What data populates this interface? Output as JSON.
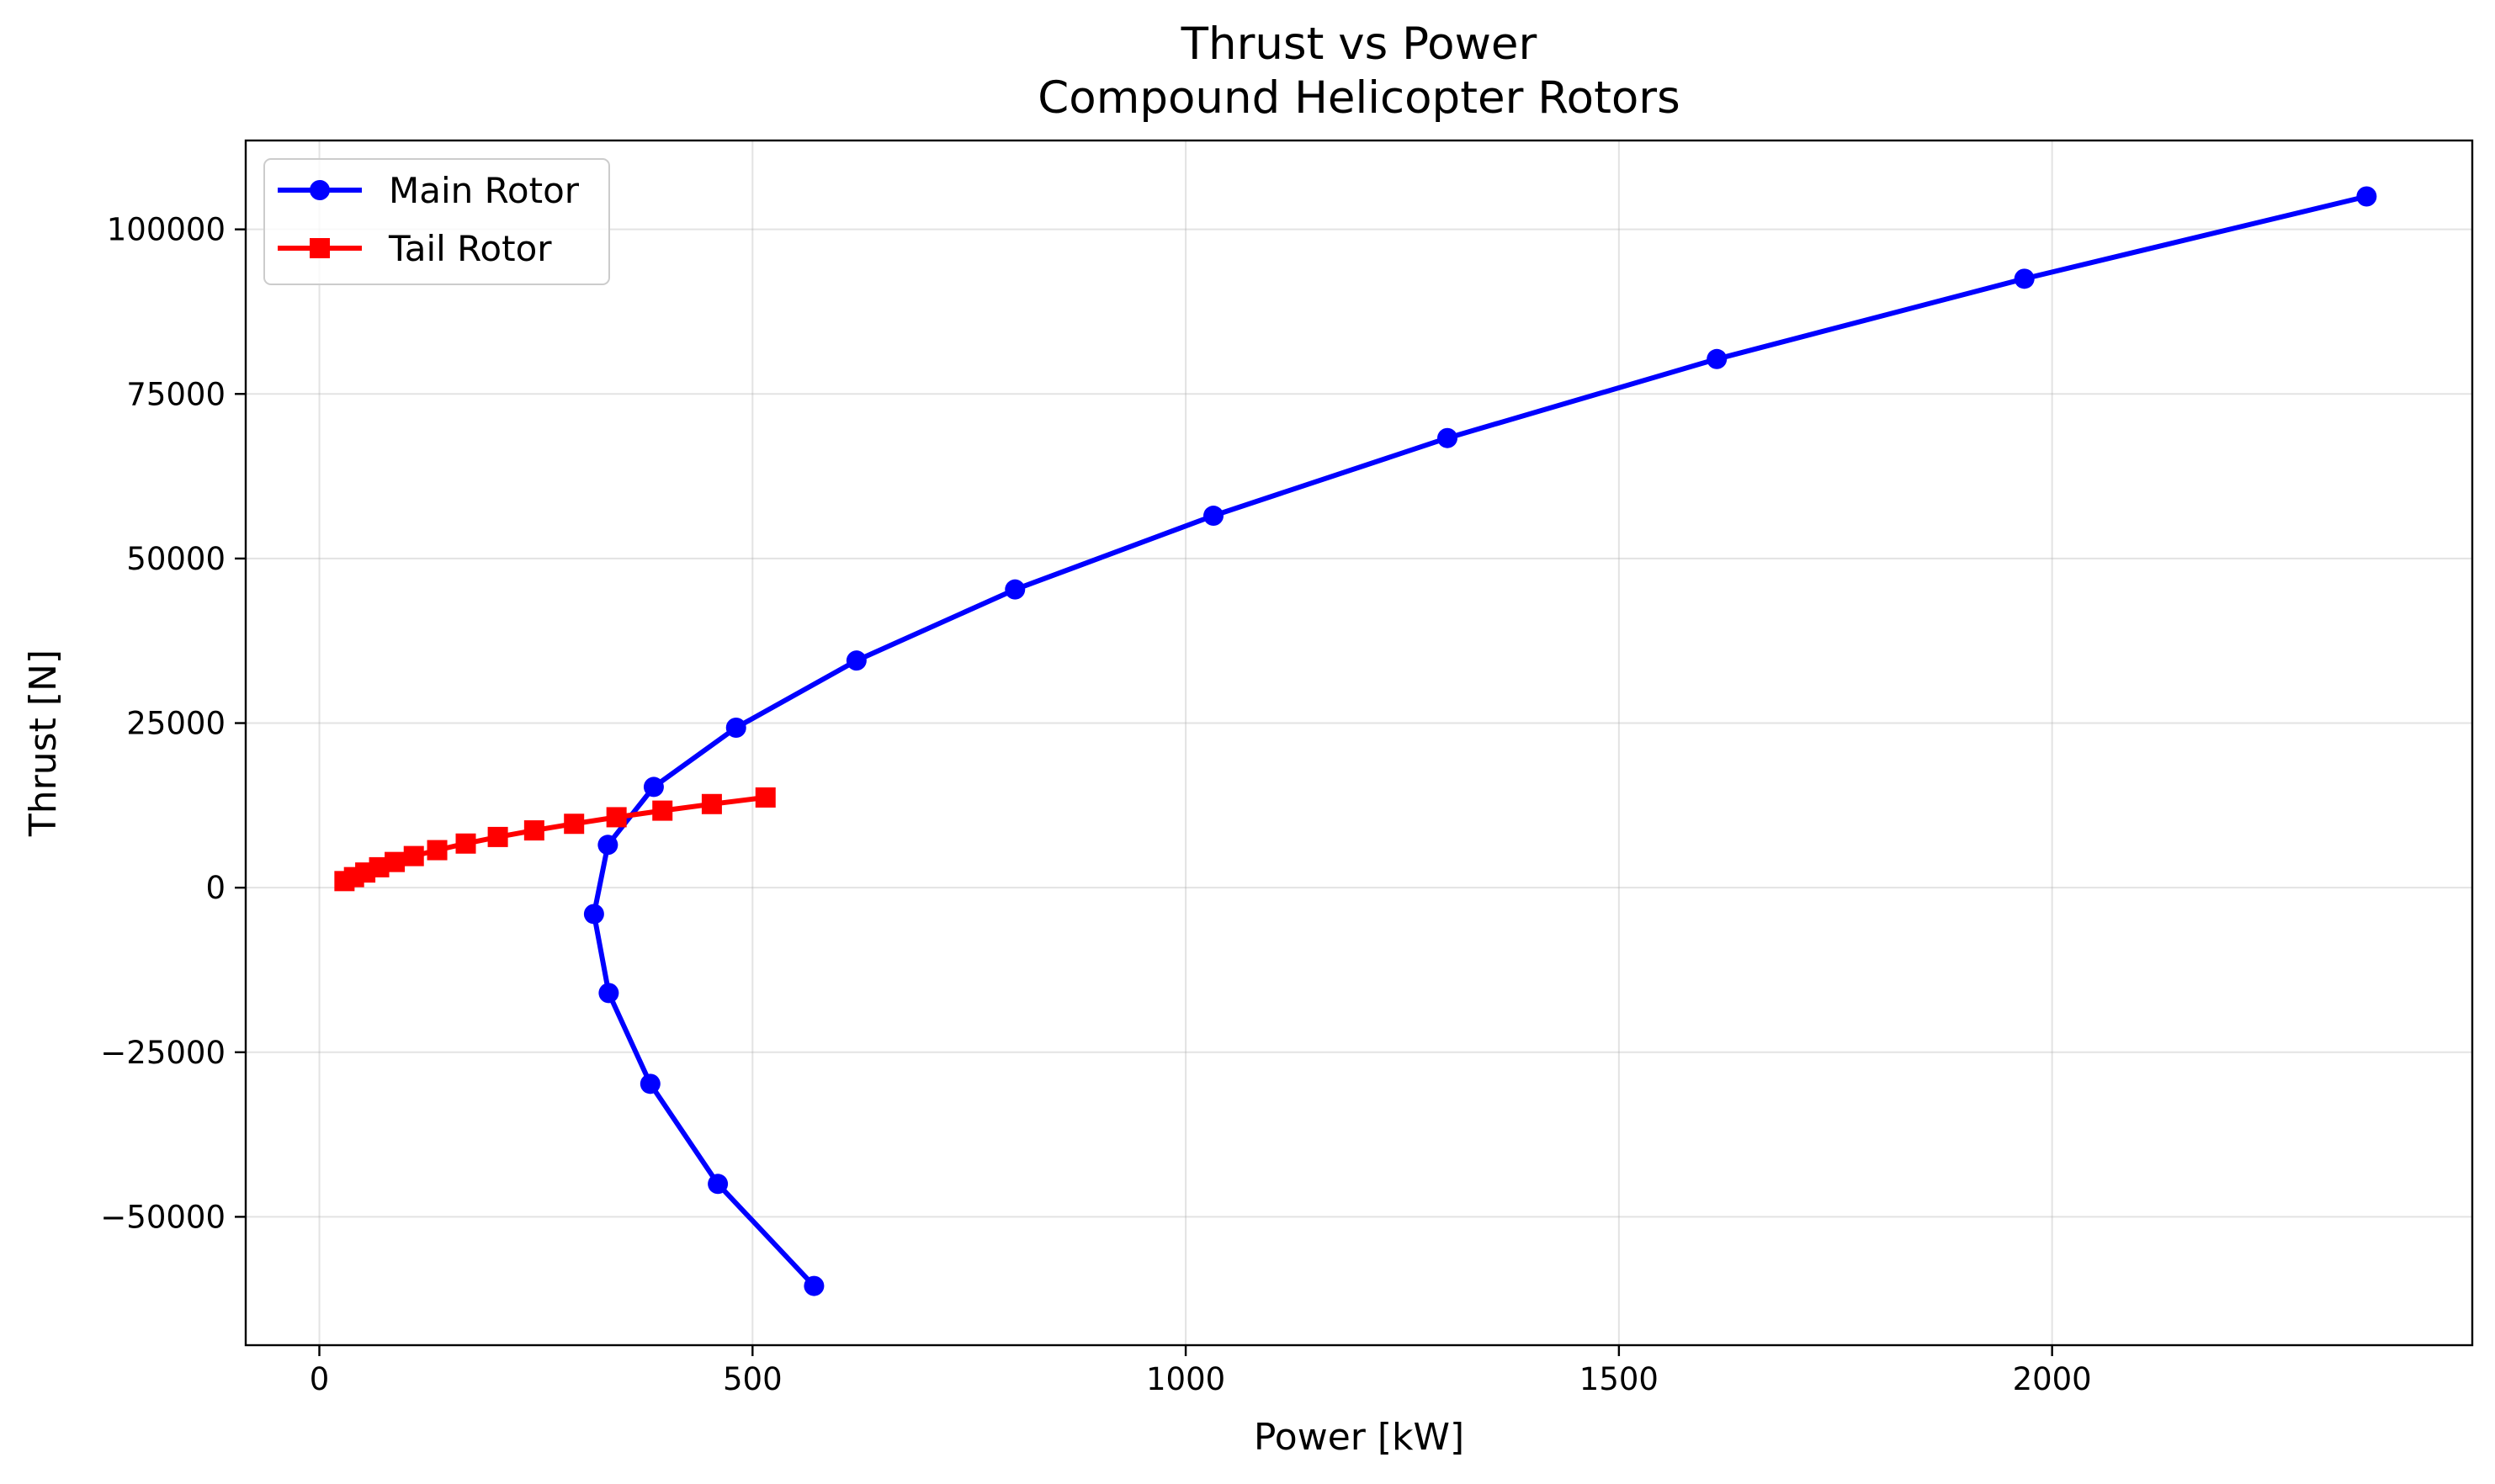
{
  "chart_data": {
    "type": "line",
    "title": "Thrust vs Power",
    "subtitle": "Compound Helicopter Rotors",
    "xlabel": "Power [kW]",
    "ylabel": "Thrust [N]",
    "xlim": [
      -85,
      2485
    ],
    "ylim": [
      -69500,
      113500
    ],
    "xticks": [
      0,
      500,
      1000,
      1500,
      2000
    ],
    "xtick_labels": [
      "0",
      "500",
      "1000",
      "1500",
      "2000"
    ],
    "yticks": [
      -50000,
      -25000,
      0,
      25000,
      50000,
      75000,
      100000
    ],
    "ytick_labels": [
      "−50000",
      "−25000",
      "0",
      "25000",
      "50000",
      "75000",
      "100000"
    ],
    "grid": true,
    "legend_position": "top-left",
    "series": [
      {
        "name": "Main Rotor",
        "color": "#0000ff",
        "marker": "circle",
        "x": [
          571,
          460,
          382,
          334,
          317,
          333,
          386,
          481,
          620,
          803,
          1032,
          1302,
          1613,
          1968,
          2363
        ],
        "y": [
          -60500,
          -45000,
          -29800,
          -16000,
          -4000,
          6500,
          15300,
          24300,
          34500,
          45300,
          56500,
          68300,
          80300,
          92500,
          105000
        ]
      },
      {
        "name": "Tail Rotor",
        "color": "#ff0000",
        "marker": "square",
        "x": [
          29,
          40,
          53,
          69,
          87,
          109,
          136,
          169,
          206,
          248,
          294,
          343,
          396,
          453,
          515
        ],
        "y": [
          1000,
          1600,
          2300,
          3100,
          3900,
          4800,
          5700,
          6700,
          7700,
          8700,
          9700,
          10700,
          11700,
          12700,
          13700
        ]
      }
    ]
  }
}
